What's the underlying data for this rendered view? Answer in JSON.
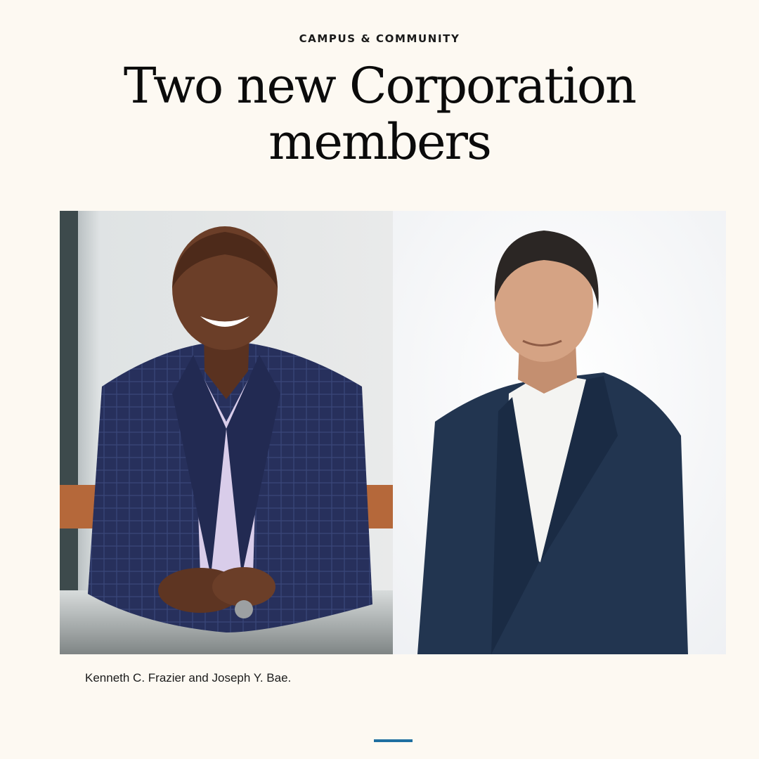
{
  "article": {
    "category": "CAMPUS & COMMUNITY",
    "headline": "Two new Corporation members",
    "caption": "Kenneth C. Frazier and Joseph Y. Bae."
  },
  "photos": [
    {
      "subject": "portrait-left",
      "background": "#e6e8e8",
      "suit_color": "#27305c",
      "shirt_color": "#d9cdea",
      "skin_color": "#6b3e28"
    },
    {
      "subject": "portrait-right",
      "background": "#f8f8fa",
      "suit_color": "#223550",
      "shirt_color": "#f4f4f2",
      "skin_color": "#d5a384"
    }
  ],
  "colors": {
    "page_background": "#fdf9f2",
    "accent": "#1f6fa0"
  }
}
